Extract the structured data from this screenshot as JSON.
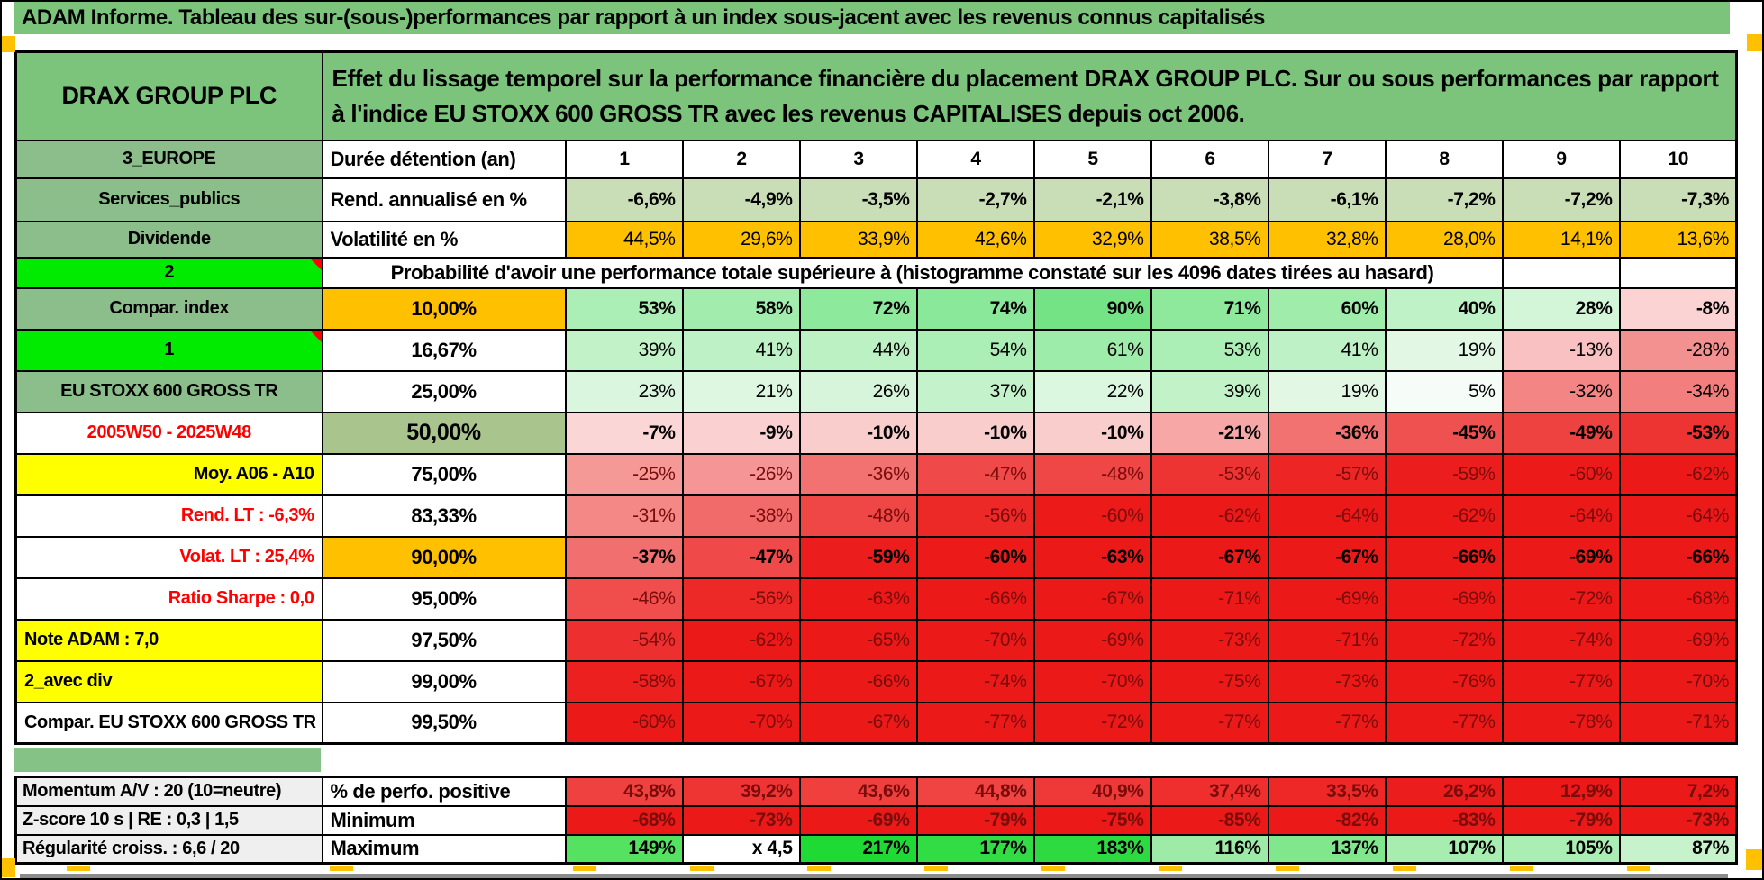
{
  "title": "ADAM Informe. Tableau des sur-(sous-)performances par rapport à un index sous-jacent avec les revenus connus capitalisés",
  "header": {
    "instrument": "DRAX GROUP PLC",
    "description": "Effet du lissage temporel sur la performance financière du placement DRAX GROUP PLC. Sur ou sous performances par rapport à l'indice EU STOXX 600 GROSS TR avec les revenus CAPITALISES depuis oct 2006."
  },
  "colors": {
    "header_green": "#7CC47C",
    "label_green": "#8CBE8C",
    "lime": "#00EB00",
    "yellow": "#FFFF00",
    "orange": "#FFC000",
    "sage": "#A9C48D",
    "gray_label": "#EFEFEF",
    "separator_green": "#85C285",
    "corner_orange": "#FFC000",
    "bottom_bar_gray": "#8C8C8C",
    "tick_yellow": "#FFC000",
    "marker_red": "#FF0000",
    "dark_red_text": "#7A0C0B",
    "red_label_text": "#FF0000"
  },
  "top_rows": [
    {
      "type": "duree",
      "label": "3_EUROPE",
      "label_bg": "green",
      "metric": "Durée détention (an)",
      "bold": true,
      "center": true,
      "cells": [
        {
          "t": "1",
          "bg": "#FFFFFF"
        },
        {
          "t": "2",
          "bg": "#FFFFFF"
        },
        {
          "t": "3",
          "bg": "#FFFFFF"
        },
        {
          "t": "4",
          "bg": "#FFFFFF"
        },
        {
          "t": "5",
          "bg": "#FFFFFF"
        },
        {
          "t": "6",
          "bg": "#FFFFFF"
        },
        {
          "t": "7",
          "bg": "#FFFFFF"
        },
        {
          "t": "8",
          "bg": "#FFFFFF"
        },
        {
          "t": "9",
          "bg": "#FFFFFF"
        },
        {
          "t": "10",
          "bg": "#FFFFFF"
        }
      ]
    },
    {
      "type": "rend",
      "label": "Services_publics",
      "label_bg": "green",
      "metric": "Rend. annualisé en %",
      "bold": true,
      "center": false,
      "cells": [
        {
          "t": "-6,6%",
          "bg": "#C9DEB7"
        },
        {
          "t": "-4,9%",
          "bg": "#C9DEB7"
        },
        {
          "t": "-3,5%",
          "bg": "#C9DEB7"
        },
        {
          "t": "-2,7%",
          "bg": "#C9DEB7"
        },
        {
          "t": "-2,1%",
          "bg": "#C9DEB7"
        },
        {
          "t": "-3,8%",
          "bg": "#C9DEB7"
        },
        {
          "t": "-6,1%",
          "bg": "#C9DEB7"
        },
        {
          "t": "-7,2%",
          "bg": "#C9DEB7"
        },
        {
          "t": "-7,2%",
          "bg": "#C9DEB7"
        },
        {
          "t": "-7,3%",
          "bg": "#C9DEB7"
        }
      ]
    },
    {
      "type": "volat",
      "label": "Dividende",
      "label_bg": "green",
      "metric": "Volatilité en %",
      "bold": false,
      "center": false,
      "cells": [
        {
          "t": "44,5%",
          "bg": "#FFC000"
        },
        {
          "t": "29,6%",
          "bg": "#FFC000"
        },
        {
          "t": "33,9%",
          "bg": "#FFC000"
        },
        {
          "t": "42,6%",
          "bg": "#FFC000"
        },
        {
          "t": "32,9%",
          "bg": "#FFC000"
        },
        {
          "t": "38,5%",
          "bg": "#FFC000"
        },
        {
          "t": "32,8%",
          "bg": "#FFC000"
        },
        {
          "t": "28,0%",
          "bg": "#FFC000"
        },
        {
          "t": "14,1%",
          "bg": "#FFC000"
        },
        {
          "t": "13,6%",
          "bg": "#FFC000"
        }
      ]
    }
  ],
  "prob_banner": {
    "label": "2",
    "marker": true,
    "text": "Probabilité d'avoir une performance totale supérieure à (histogramme constaté sur les 4096 dates tirées au hasard)",
    "empty_trailing": 2
  },
  "prob_rows": [
    {
      "label": "Compar. index",
      "label_bg": "green",
      "label_color": "black",
      "label_align": "center",
      "marker": false,
      "pct": "10,00%",
      "pct_bg": "orange",
      "pct_big": false,
      "bold": true,
      "vcolor": "black",
      "cells": [
        {
          "t": "53%",
          "bg": "#ABEEB6"
        },
        {
          "t": "58%",
          "bg": "#A2EDAE"
        },
        {
          "t": "72%",
          "bg": "#8DE99C"
        },
        {
          "t": "74%",
          "bg": "#8AE89A"
        },
        {
          "t": "90%",
          "bg": "#73E386"
        },
        {
          "t": "71%",
          "bg": "#8EE99D"
        },
        {
          "t": "60%",
          "bg": "#9FECAB"
        },
        {
          "t": "40%",
          "bg": "#C0F2C7"
        },
        {
          "t": "28%",
          "bg": "#D3F5D8"
        },
        {
          "t": "-8%",
          "bg": "#FBD3D3"
        }
      ]
    },
    {
      "label": "1",
      "label_bg": "lime",
      "label_color": "black",
      "label_align": "center",
      "marker": true,
      "pct": "16,67%",
      "pct_bg": "white",
      "pct_big": false,
      "bold": false,
      "vcolor": "black",
      "cells": [
        {
          "t": "39%",
          "bg": "#C1F2C8"
        },
        {
          "t": "41%",
          "bg": "#BFF1C6"
        },
        {
          "t": "44%",
          "bg": "#BBF1C3"
        },
        {
          "t": "54%",
          "bg": "#ABEEB6"
        },
        {
          "t": "61%",
          "bg": "#9EECAA"
        },
        {
          "t": "53%",
          "bg": "#ABEEB6"
        },
        {
          "t": "41%",
          "bg": "#BFF1C6"
        },
        {
          "t": "19%",
          "bg": "#E2F8E5"
        },
        {
          "t": "-13%",
          "bg": "#F9C1C1"
        },
        {
          "t": "-28%",
          "bg": "#F39190"
        }
      ]
    },
    {
      "label": "EU STOXX 600 GROSS TR",
      "label_bg": "green",
      "label_color": "black",
      "label_align": "center",
      "marker": false,
      "pct": "25,00%",
      "pct_bg": "white",
      "pct_big": false,
      "bold": false,
      "vcolor": "black",
      "cells": [
        {
          "t": "23%",
          "bg": "#DBF6DF"
        },
        {
          "t": "21%",
          "bg": "#DEF7E1"
        },
        {
          "t": "26%",
          "bg": "#D6F5DA"
        },
        {
          "t": "37%",
          "bg": "#C4F3CB"
        },
        {
          "t": "22%",
          "bg": "#DCF7E0"
        },
        {
          "t": "39%",
          "bg": "#C1F2C8"
        },
        {
          "t": "19%",
          "bg": "#E2F8E5"
        },
        {
          "t": "5%",
          "bg": "#F6FCF7"
        },
        {
          "t": "-32%",
          "bg": "#F38584"
        },
        {
          "t": "-34%",
          "bg": "#F27F7E"
        }
      ]
    },
    {
      "label": "2005W50 - 2025W48",
      "label_bg": "white",
      "label_color": "red",
      "label_align": "center",
      "marker": false,
      "pct": "50,00%",
      "pct_bg": "sage",
      "pct_big": true,
      "bold": true,
      "vcolor": "black",
      "cells": [
        {
          "t": "-7%",
          "bg": "#FBD6D6"
        },
        {
          "t": "-9%",
          "bg": "#FAD0D0"
        },
        {
          "t": "-10%",
          "bg": "#FACDCD"
        },
        {
          "t": "-10%",
          "bg": "#FACDCD"
        },
        {
          "t": "-10%",
          "bg": "#FACDCD"
        },
        {
          "t": "-21%",
          "bg": "#F6A7A6"
        },
        {
          "t": "-36%",
          "bg": "#F17271"
        },
        {
          "t": "-45%",
          "bg": "#EF5150"
        },
        {
          "t": "-49%",
          "bg": "#EE4241"
        },
        {
          "t": "-53%",
          "bg": "#ED3433"
        }
      ]
    },
    {
      "label": "Moy. A06 - A10",
      "label_bg": "yellow",
      "label_color": "black",
      "label_align": "right",
      "marker": false,
      "pct": "75,00%",
      "pct_bg": "white",
      "pct_big": false,
      "bold": false,
      "vcolor": "darkred",
      "cells": [
        {
          "t": "-25%",
          "bg": "#F59997"
        },
        {
          "t": "-26%",
          "bg": "#F59595"
        },
        {
          "t": "-36%",
          "bg": "#F17271"
        },
        {
          "t": "-47%",
          "bg": "#EF4A49"
        },
        {
          "t": "-48%",
          "bg": "#EF4646"
        },
        {
          "t": "-53%",
          "bg": "#ED3433"
        },
        {
          "t": "-57%",
          "bg": "#ED2524"
        },
        {
          "t": "-59%",
          "bg": "#EC1E1D"
        },
        {
          "t": "-60%",
          "bg": "#EC1B1A"
        },
        {
          "t": "-62%",
          "bg": "#EB1918"
        }
      ]
    },
    {
      "label": "Rend. LT :   -6,3%",
      "label_bg": "white",
      "label_color": "red",
      "label_align": "right",
      "marker": false,
      "pct": "83,33%",
      "pct_bg": "white",
      "pct_big": false,
      "bold": false,
      "vcolor": "darkred",
      "cells": [
        {
          "t": "-31%",
          "bg": "#F38887"
        },
        {
          "t": "-38%",
          "bg": "#F16B6A"
        },
        {
          "t": "-48%",
          "bg": "#EF4646"
        },
        {
          "t": "-56%",
          "bg": "#ED2928"
        },
        {
          "t": "-60%",
          "bg": "#EC1B1A"
        },
        {
          "t": "-62%",
          "bg": "#EB1918"
        },
        {
          "t": "-64%",
          "bg": "#EB1918"
        },
        {
          "t": "-62%",
          "bg": "#EB1918"
        },
        {
          "t": "-64%",
          "bg": "#EB1918"
        },
        {
          "t": "-64%",
          "bg": "#EB1918"
        }
      ]
    },
    {
      "label": "Volat. LT :   25,4%",
      "label_bg": "white",
      "label_color": "red",
      "label_align": "right",
      "marker": false,
      "pct": "90,00%",
      "pct_bg": "orange",
      "pct_big": false,
      "bold": true,
      "vcolor": "black",
      "cells": [
        {
          "t": "-37%",
          "bg": "#F16F6E"
        },
        {
          "t": "-47%",
          "bg": "#EF4A49"
        },
        {
          "t": "-59%",
          "bg": "#EC1E1D"
        },
        {
          "t": "-60%",
          "bg": "#EC1B1A"
        },
        {
          "t": "-63%",
          "bg": "#EB1918"
        },
        {
          "t": "-67%",
          "bg": "#EB1918"
        },
        {
          "t": "-67%",
          "bg": "#EB1918"
        },
        {
          "t": "-66%",
          "bg": "#EB1918"
        },
        {
          "t": "-69%",
          "bg": "#EB1918"
        },
        {
          "t": "-66%",
          "bg": "#EB1918"
        }
      ]
    },
    {
      "label": "Ratio Sharpe :   0,0",
      "label_bg": "white",
      "label_color": "red",
      "label_align": "right",
      "marker": false,
      "pct": "95,00%",
      "pct_bg": "white",
      "pct_big": false,
      "bold": false,
      "vcolor": "darkred",
      "cells": [
        {
          "t": "-46%",
          "bg": "#EF4E4D"
        },
        {
          "t": "-56%",
          "bg": "#ED2928"
        },
        {
          "t": "-63%",
          "bg": "#EB1918"
        },
        {
          "t": "-66%",
          "bg": "#EB1918"
        },
        {
          "t": "-67%",
          "bg": "#EB1918"
        },
        {
          "t": "-71%",
          "bg": "#EB1918"
        },
        {
          "t": "-69%",
          "bg": "#EB1918"
        },
        {
          "t": "-69%",
          "bg": "#EB1918"
        },
        {
          "t": "-72%",
          "bg": "#EB1918"
        },
        {
          "t": "-68%",
          "bg": "#EB1918"
        }
      ]
    },
    {
      "label": "Note ADAM : 7,0",
      "label_bg": "yellow",
      "label_color": "black",
      "label_align": "left",
      "marker": false,
      "pct": "97,50%",
      "pct_bg": "white",
      "pct_big": false,
      "bold": false,
      "vcolor": "darkred",
      "cells": [
        {
          "t": "-54%",
          "bg": "#ED302F"
        },
        {
          "t": "-62%",
          "bg": "#EB1918"
        },
        {
          "t": "-65%",
          "bg": "#EB1918"
        },
        {
          "t": "-70%",
          "bg": "#EB1918"
        },
        {
          "t": "-69%",
          "bg": "#EB1918"
        },
        {
          "t": "-73%",
          "bg": "#EB1918"
        },
        {
          "t": "-71%",
          "bg": "#EB1918"
        },
        {
          "t": "-72%",
          "bg": "#EB1918"
        },
        {
          "t": "-74%",
          "bg": "#EB1918"
        },
        {
          "t": "-69%",
          "bg": "#EB1918"
        }
      ]
    },
    {
      "label": "2_avec div",
      "label_bg": "yellow",
      "label_color": "black",
      "label_align": "left",
      "marker": false,
      "pct": "99,00%",
      "pct_bg": "white",
      "pct_big": false,
      "bold": false,
      "vcolor": "darkred",
      "cells": [
        {
          "t": "-58%",
          "bg": "#EC201F"
        },
        {
          "t": "-67%",
          "bg": "#EB1918"
        },
        {
          "t": "-66%",
          "bg": "#EB1918"
        },
        {
          "t": "-74%",
          "bg": "#EB1918"
        },
        {
          "t": "-70%",
          "bg": "#EB1918"
        },
        {
          "t": "-75%",
          "bg": "#EB1918"
        },
        {
          "t": "-73%",
          "bg": "#EB1918"
        },
        {
          "t": "-76%",
          "bg": "#EB1918"
        },
        {
          "t": "-77%",
          "bg": "#EB1918"
        },
        {
          "t": "-70%",
          "bg": "#EB1918"
        }
      ]
    },
    {
      "label": "Compar. EU STOXX 600 GROSS TR",
      "label_bg": "white",
      "label_color": "black",
      "label_align": "left",
      "marker": false,
      "pct": "99,50%",
      "pct_bg": "white",
      "pct_big": false,
      "bold": false,
      "vcolor": "darkred",
      "cells": [
        {
          "t": "-60%",
          "bg": "#EB1918"
        },
        {
          "t": "-70%",
          "bg": "#EB1918"
        },
        {
          "t": "-67%",
          "bg": "#EB1918"
        },
        {
          "t": "-77%",
          "bg": "#EB1918"
        },
        {
          "t": "-72%",
          "bg": "#EB1918"
        },
        {
          "t": "-77%",
          "bg": "#EB1918"
        },
        {
          "t": "-77%",
          "bg": "#EB1918"
        },
        {
          "t": "-77%",
          "bg": "#EB1918"
        },
        {
          "t": "-78%",
          "bg": "#EB1918"
        },
        {
          "t": "-71%",
          "bg": "#EB1918"
        }
      ]
    }
  ],
  "bottom_rows": [
    {
      "label": "Momentum A/V : 20 (10=neutre)",
      "metric": "% de perfo. positive",
      "vcolor": "darkred",
      "cells": [
        {
          "t": "43,8%",
          "bg": "#EF413F"
        },
        {
          "t": "39,2%",
          "bg": "#EE3534"
        },
        {
          "t": "43,6%",
          "bg": "#EF403E"
        },
        {
          "t": "44,8%",
          "bg": "#EF4442"
        },
        {
          "t": "40,9%",
          "bg": "#EE3938"
        },
        {
          "t": "37,4%",
          "bg": "#EE2F2E"
        },
        {
          "t": "33,5%",
          "bg": "#ED2827"
        },
        {
          "t": "26,2%",
          "bg": "#EC1E1D"
        },
        {
          "t": "12,9%",
          "bg": "#EB1918"
        },
        {
          "t": "7,2%",
          "bg": "#EB1918"
        }
      ]
    },
    {
      "label": "Z-score 10 s | RE : 0,3 |  1,5",
      "metric": "Minimum",
      "vcolor": "darkred",
      "cells": [
        {
          "t": "-68%",
          "bg": "#EB1918"
        },
        {
          "t": "-73%",
          "bg": "#EB1918"
        },
        {
          "t": "-69%",
          "bg": "#EB1918"
        },
        {
          "t": "-79%",
          "bg": "#EB1918"
        },
        {
          "t": "-75%",
          "bg": "#EB1918"
        },
        {
          "t": "-85%",
          "bg": "#EB1918"
        },
        {
          "t": "-82%",
          "bg": "#EB1918"
        },
        {
          "t": "-83%",
          "bg": "#EB1918"
        },
        {
          "t": "-79%",
          "bg": "#EB1918"
        },
        {
          "t": "-73%",
          "bg": "#EB1918"
        }
      ]
    },
    {
      "label": "Régularité croiss. : 6,6 / 20",
      "metric": "Maximum",
      "vcolor": "black",
      "cells": [
        {
          "t": "149%",
          "bg": "#56E261"
        },
        {
          "t": "x 4,5",
          "bg": "#FFFFFF"
        },
        {
          "t": "217%",
          "bg": "#1FD934"
        },
        {
          "t": "177%",
          "bg": "#32DC45"
        },
        {
          "t": "183%",
          "bg": "#2DDB41"
        },
        {
          "t": "116%",
          "bg": "#9DEBA6"
        },
        {
          "t": "137%",
          "bg": "#80E78C"
        },
        {
          "t": "107%",
          "bg": "#A8EDB0"
        },
        {
          "t": "105%",
          "bg": "#ABEEB3"
        },
        {
          "t": "87%",
          "bg": "#C7F3CC"
        }
      ]
    }
  ],
  "layout_cols": {
    "label_w": 340,
    "metric_w": 270,
    "data_w": 130,
    "n_data": 10
  }
}
